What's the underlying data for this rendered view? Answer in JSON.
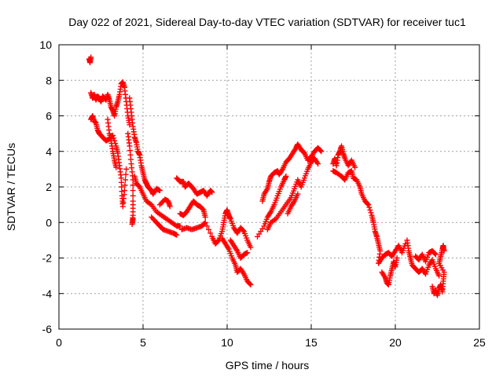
{
  "chart_data": {
    "type": "scatter",
    "title": "Day 022 of 2021, Sidereal Day-to-day VTEC variation (SDTVAR) for receiver tuc1",
    "xlabel": "GPS time / hours",
    "ylabel": "SDTVAR / TECUs",
    "xlim": [
      0,
      25
    ],
    "ylim": [
      -6,
      10
    ],
    "xticks": [
      0,
      5,
      10,
      15,
      20,
      25
    ],
    "yticks": [
      -6,
      -4,
      -2,
      0,
      2,
      4,
      6,
      8,
      10
    ],
    "xtick_labels": [
      "0",
      "5",
      "10",
      "15",
      "20",
      "25"
    ],
    "ytick_labels": [
      "-6",
      "-4",
      "-2",
      "0",
      "2",
      "4",
      "6",
      "8",
      "10"
    ],
    "grid": true,
    "marker": "+",
    "color": "#ff0000",
    "series": [
      {
        "name": "tuc1",
        "points": [
          [
            1.8,
            9.2
          ],
          [
            1.85,
            9.0
          ],
          [
            1.9,
            9.3
          ],
          [
            1.9,
            7.3
          ],
          [
            2.0,
            7.0
          ],
          [
            2.1,
            7.2
          ],
          [
            2.2,
            6.9
          ],
          [
            2.3,
            7.1
          ],
          [
            2.4,
            7.0
          ],
          [
            2.5,
            6.8
          ],
          [
            2.6,
            7.1
          ],
          [
            2.7,
            7.0
          ],
          [
            2.8,
            6.9
          ],
          [
            2.9,
            7.2
          ],
          [
            3.0,
            6.9
          ],
          [
            3.1,
            6.5
          ],
          [
            3.2,
            6.3
          ],
          [
            3.3,
            6.0
          ],
          [
            3.4,
            6.5
          ],
          [
            3.5,
            6.8
          ],
          [
            3.6,
            7.2
          ],
          [
            3.7,
            7.8
          ],
          [
            3.8,
            7.9
          ],
          [
            3.9,
            7.6
          ],
          [
            4.0,
            6.8
          ],
          [
            4.1,
            6.0
          ],
          [
            4.2,
            5.5
          ],
          [
            1.9,
            5.8
          ],
          [
            2.0,
            6.0
          ],
          [
            2.1,
            5.7
          ],
          [
            2.2,
            5.6
          ],
          [
            2.3,
            5.2
          ],
          [
            2.4,
            5.0
          ],
          [
            2.6,
            4.8
          ],
          [
            2.8,
            4.6
          ],
          [
            3.0,
            4.7
          ],
          [
            3.2,
            4.9
          ],
          [
            3.4,
            4.3
          ],
          [
            3.5,
            3.9
          ],
          [
            3.6,
            3.2
          ],
          [
            3.7,
            2.5
          ],
          [
            3.75,
            1.5
          ],
          [
            3.8,
            0.9
          ],
          [
            3.9,
            1.8
          ],
          [
            4.0,
            3.0
          ],
          [
            2.9,
            5.8
          ],
          [
            3.0,
            5.0
          ],
          [
            3.1,
            4.6
          ],
          [
            3.2,
            4.0
          ],
          [
            3.3,
            3.5
          ],
          [
            3.4,
            3.1
          ],
          [
            4.1,
            5.0
          ],
          [
            4.2,
            4.3
          ],
          [
            4.3,
            3.3
          ],
          [
            4.4,
            2.4
          ],
          [
            4.4,
            1.2
          ],
          [
            4.4,
            0.4
          ],
          [
            4.35,
            -0.1
          ],
          [
            4.4,
            0.2
          ],
          [
            4.2,
            7.0
          ],
          [
            4.3,
            6.2
          ],
          [
            4.4,
            5.4
          ],
          [
            4.5,
            4.8
          ],
          [
            4.6,
            4.5
          ],
          [
            4.7,
            4.0
          ],
          [
            4.8,
            3.8
          ],
          [
            4.9,
            3.2
          ],
          [
            5.0,
            2.8
          ],
          [
            5.1,
            2.4
          ],
          [
            5.2,
            2.2
          ],
          [
            5.3,
            2.0
          ],
          [
            5.4,
            1.9
          ],
          [
            5.5,
            1.8
          ],
          [
            5.6,
            1.6
          ],
          [
            5.8,
            1.9
          ],
          [
            6.0,
            1.8
          ],
          [
            4.5,
            2.6
          ],
          [
            4.6,
            2.2
          ],
          [
            4.8,
            2.0
          ],
          [
            5.0,
            1.6
          ],
          [
            5.2,
            1.2
          ],
          [
            5.5,
            1.0
          ],
          [
            5.8,
            0.6
          ],
          [
            6.1,
            0.4
          ],
          [
            6.4,
            0.2
          ],
          [
            6.7,
            0.0
          ],
          [
            7.0,
            -0.2
          ],
          [
            7.2,
            -0.2
          ],
          [
            5.5,
            0.3
          ],
          [
            5.8,
            0.0
          ],
          [
            6.0,
            -0.2
          ],
          [
            6.2,
            -0.4
          ],
          [
            6.5,
            -0.5
          ],
          [
            6.8,
            -0.6
          ],
          [
            7.0,
            -0.7
          ],
          [
            6.0,
            1.0
          ],
          [
            6.3,
            1.3
          ],
          [
            6.5,
            1.2
          ],
          [
            6.6,
            0.9
          ],
          [
            7.0,
            2.5
          ],
          [
            7.2,
            2.3
          ],
          [
            7.4,
            2.3
          ],
          [
            7.5,
            2.0
          ],
          [
            7.7,
            2.2
          ],
          [
            7.8,
            2.1
          ],
          [
            8.0,
            1.9
          ],
          [
            8.2,
            1.6
          ],
          [
            8.4,
            1.7
          ],
          [
            8.6,
            1.8
          ],
          [
            8.8,
            1.5
          ],
          [
            9.0,
            1.8
          ],
          [
            9.1,
            1.7
          ],
          [
            7.2,
            0.5
          ],
          [
            7.4,
            0.4
          ],
          [
            7.6,
            0.6
          ],
          [
            7.8,
            0.9
          ],
          [
            8.0,
            1.2
          ],
          [
            8.2,
            1.0
          ],
          [
            8.4,
            0.9
          ],
          [
            8.6,
            0.7
          ],
          [
            8.7,
            0.3
          ],
          [
            7.3,
            -0.4
          ],
          [
            7.6,
            -0.3
          ],
          [
            7.9,
            -0.4
          ],
          [
            8.2,
            -0.3
          ],
          [
            8.5,
            -0.2
          ],
          [
            8.7,
            0.0
          ],
          [
            9.1,
            -0.8
          ],
          [
            9.3,
            -1.2
          ],
          [
            9.5,
            -1.0
          ],
          [
            9.7,
            -0.5
          ],
          [
            9.8,
            0.0
          ],
          [
            9.9,
            0.5
          ],
          [
            10.0,
            0.7
          ],
          [
            10.1,
            0.4
          ],
          [
            10.2,
            0.2
          ],
          [
            10.4,
            -0.3
          ],
          [
            10.6,
            -0.6
          ],
          [
            10.8,
            -0.3
          ],
          [
            11.0,
            -0.5
          ],
          [
            11.2,
            -1.0
          ],
          [
            11.4,
            -1.4
          ],
          [
            9.7,
            -0.9
          ],
          [
            9.9,
            -1.2
          ],
          [
            10.1,
            -1.5
          ],
          [
            10.3,
            -2.0
          ],
          [
            10.5,
            -2.4
          ],
          [
            10.6,
            -2.8
          ],
          [
            10.8,
            -2.6
          ],
          [
            11.0,
            -2.9
          ],
          [
            11.2,
            -3.3
          ],
          [
            11.4,
            -3.5
          ],
          [
            10.2,
            -1.0
          ],
          [
            10.4,
            -1.3
          ],
          [
            10.6,
            -1.6
          ],
          [
            10.8,
            -2.0
          ],
          [
            11.0,
            -1.8
          ],
          [
            11.2,
            -1.7
          ],
          [
            11.8,
            -0.8
          ],
          [
            12.2,
            -0.2
          ],
          [
            12.4,
            0.3
          ],
          [
            12.6,
            0.6
          ],
          [
            12.8,
            1.0
          ],
          [
            13.0,
            1.5
          ],
          [
            13.2,
            2.0
          ],
          [
            13.4,
            2.4
          ],
          [
            13.5,
            2.6
          ],
          [
            12.1,
            1.2
          ],
          [
            12.2,
            1.6
          ],
          [
            12.4,
            1.9
          ],
          [
            12.5,
            2.3
          ],
          [
            12.6,
            2.6
          ],
          [
            12.8,
            2.8
          ],
          [
            13.0,
            2.9
          ],
          [
            13.1,
            2.7
          ],
          [
            13.3,
            3.0
          ],
          [
            13.5,
            3.4
          ],
          [
            13.7,
            3.6
          ],
          [
            13.9,
            3.9
          ],
          [
            14.1,
            4.2
          ],
          [
            14.2,
            4.4
          ],
          [
            14.4,
            4.1
          ],
          [
            14.6,
            3.9
          ],
          [
            14.8,
            3.5
          ],
          [
            15.0,
            3.7
          ],
          [
            15.2,
            4.0
          ],
          [
            15.4,
            4.2
          ],
          [
            15.6,
            4.0
          ],
          [
            12.4,
            -0.4
          ],
          [
            12.6,
            0.0
          ],
          [
            12.9,
            0.2
          ],
          [
            13.2,
            0.6
          ],
          [
            13.5,
            1.0
          ],
          [
            13.8,
            1.4
          ],
          [
            14.0,
            1.9
          ],
          [
            14.2,
            2.4
          ],
          [
            14.4,
            2.0
          ],
          [
            14.6,
            2.5
          ],
          [
            14.8,
            3.0
          ],
          [
            15.0,
            3.4
          ],
          [
            15.2,
            3.6
          ],
          [
            15.4,
            3.3
          ],
          [
            13.6,
            0.5
          ],
          [
            13.8,
            0.9
          ],
          [
            14.0,
            1.2
          ],
          [
            14.2,
            1.6
          ],
          [
            16.3,
            3.3
          ],
          [
            16.4,
            3.6
          ],
          [
            16.5,
            3.2
          ],
          [
            16.6,
            3.8
          ],
          [
            16.7,
            4.0
          ],
          [
            16.8,
            4.3
          ],
          [
            16.9,
            3.9
          ],
          [
            17.0,
            3.6
          ],
          [
            17.2,
            3.2
          ],
          [
            17.4,
            3.5
          ],
          [
            17.6,
            3.1
          ],
          [
            16.3,
            2.9
          ],
          [
            16.5,
            2.8
          ],
          [
            16.8,
            2.6
          ],
          [
            17.0,
            2.4
          ],
          [
            17.2,
            2.8
          ],
          [
            17.4,
            2.9
          ],
          [
            17.5,
            2.5
          ],
          [
            17.7,
            2.4
          ],
          [
            17.9,
            2.0
          ],
          [
            18.0,
            1.6
          ],
          [
            18.2,
            1.2
          ],
          [
            18.4,
            1.0
          ],
          [
            18.6,
            0.4
          ],
          [
            18.7,
            0.0
          ],
          [
            18.8,
            -0.5
          ],
          [
            18.9,
            -0.8
          ],
          [
            19.0,
            -1.2
          ],
          [
            19.1,
            -1.6
          ],
          [
            19.0,
            -2.3
          ],
          [
            19.2,
            -2.0
          ],
          [
            19.4,
            -1.8
          ],
          [
            19.6,
            -1.7
          ],
          [
            19.8,
            -1.9
          ],
          [
            20.0,
            -1.6
          ],
          [
            20.2,
            -1.3
          ],
          [
            20.4,
            -1.7
          ],
          [
            20.6,
            -1.2
          ],
          [
            19.2,
            -2.8
          ],
          [
            19.4,
            -3.1
          ],
          [
            19.5,
            -3.4
          ],
          [
            19.6,
            -3.5
          ],
          [
            19.7,
            -3.0
          ],
          [
            19.8,
            -2.6
          ],
          [
            19.9,
            -2.2
          ],
          [
            20.0,
            -2.5
          ],
          [
            20.1,
            -2.0
          ],
          [
            20.7,
            -1.0
          ],
          [
            20.8,
            -1.6
          ],
          [
            20.9,
            -2.0
          ],
          [
            21.0,
            -2.4
          ],
          [
            21.2,
            -2.6
          ],
          [
            21.4,
            -2.8
          ],
          [
            21.6,
            -2.6
          ],
          [
            21.8,
            -2.9
          ],
          [
            22.0,
            -2.4
          ],
          [
            22.2,
            -2.1
          ],
          [
            22.4,
            -2.6
          ],
          [
            22.6,
            -3.0
          ],
          [
            21.2,
            -1.9
          ],
          [
            21.4,
            -2.1
          ],
          [
            21.6,
            -1.8
          ],
          [
            21.8,
            -2.2
          ],
          [
            22.0,
            -1.7
          ],
          [
            22.2,
            -1.6
          ],
          [
            22.4,
            -1.8
          ],
          [
            22.2,
            -3.6
          ],
          [
            22.3,
            -4.0
          ],
          [
            22.4,
            -3.8
          ],
          [
            22.5,
            -4.1
          ],
          [
            22.6,
            -3.7
          ],
          [
            22.7,
            -3.5
          ],
          [
            22.8,
            -3.9
          ],
          [
            22.85,
            -3.3
          ],
          [
            22.9,
            -2.8
          ],
          [
            22.6,
            -2.3
          ],
          [
            22.7,
            -1.9
          ],
          [
            22.8,
            -1.5
          ],
          [
            22.85,
            -1.3
          ],
          [
            22.9,
            -1.6
          ]
        ]
      }
    ]
  }
}
